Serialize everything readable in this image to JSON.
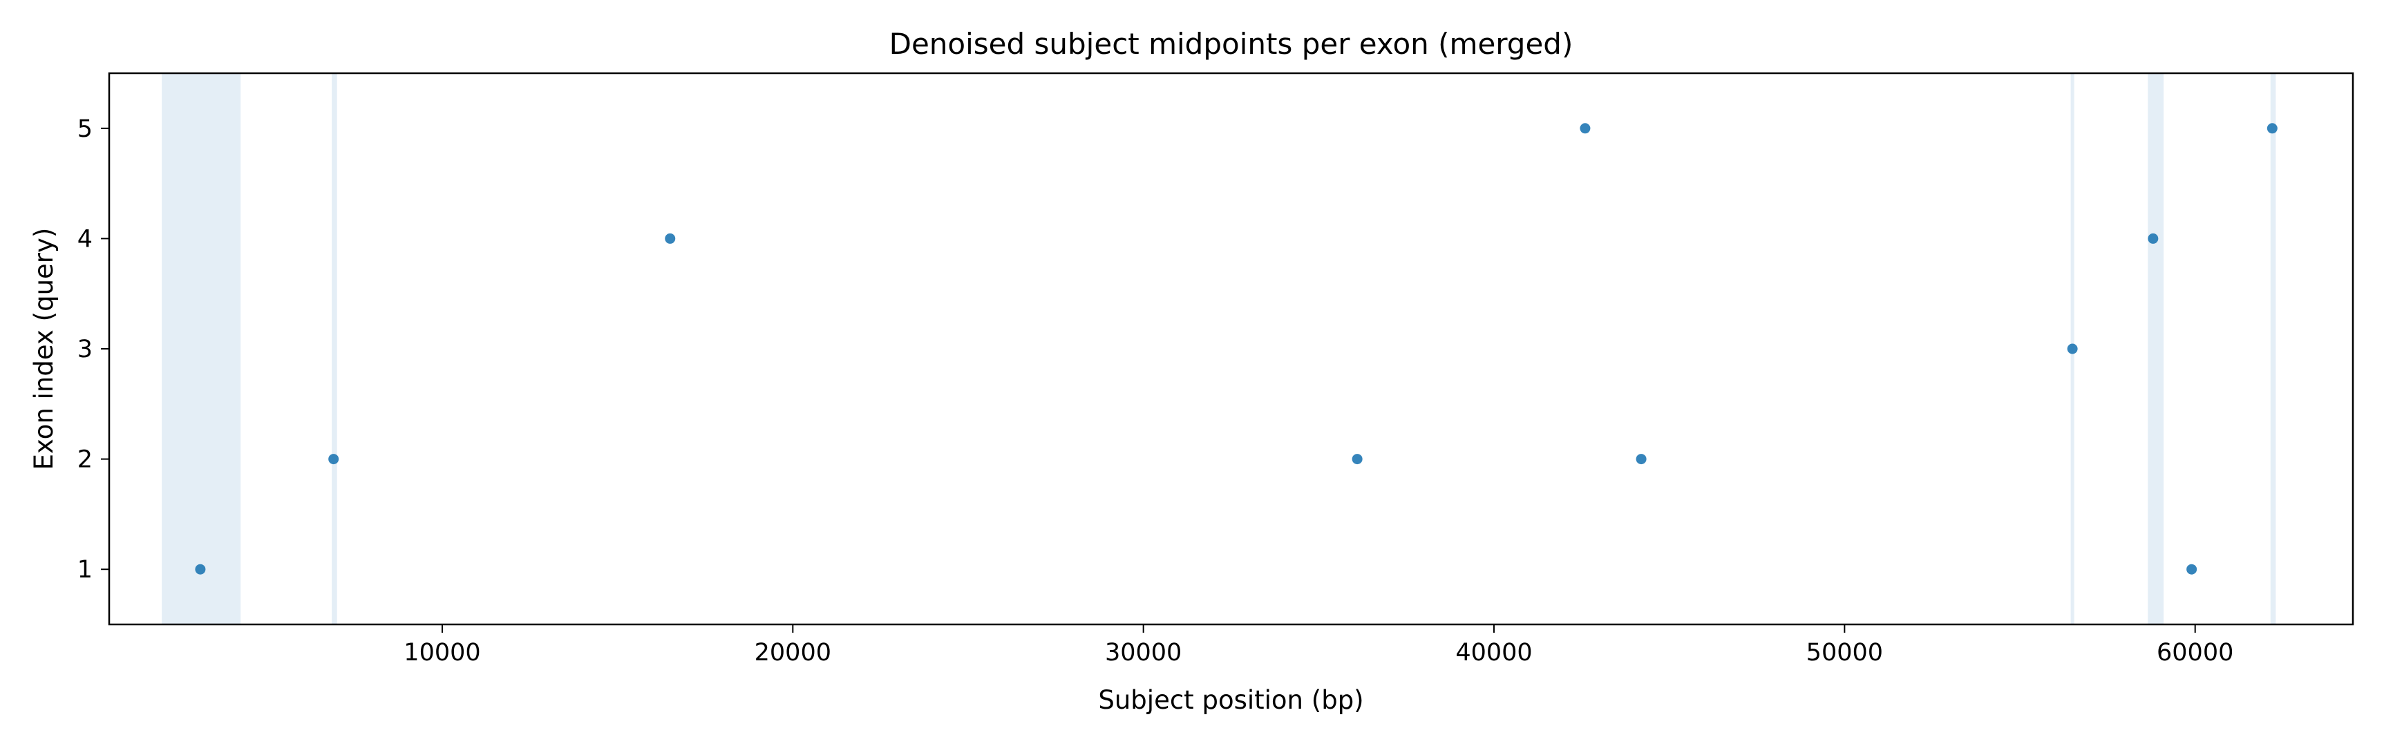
{
  "chart_data": {
    "type": "scatter",
    "title": "Denoised subject midpoints per exon (merged)",
    "xlabel": "Subject position (bp)",
    "ylabel": "Exon index (query)",
    "xlim": [
      500,
      64500
    ],
    "ylim": [
      0.5,
      5.5
    ],
    "xticks": [
      10000,
      20000,
      30000,
      40000,
      50000,
      60000
    ],
    "yticks": [
      1,
      2,
      3,
      4,
      5
    ],
    "grid": false,
    "colors": {
      "points": "#1f77b4",
      "bands": "#1f77b4"
    },
    "series": [
      {
        "points": [
          {
            "x": 3100,
            "y": 1
          },
          {
            "x": 6900,
            "y": 2
          },
          {
            "x": 16500,
            "y": 4
          },
          {
            "x": 36100,
            "y": 2
          },
          {
            "x": 42600,
            "y": 5
          },
          {
            "x": 44200,
            "y": 2
          },
          {
            "x": 56500,
            "y": 3
          },
          {
            "x": 58800,
            "y": 4
          },
          {
            "x": 59900,
            "y": 1
          },
          {
            "x": 62200,
            "y": 5
          }
        ]
      }
    ],
    "highlight_bands": [
      {
        "x_start": 2000,
        "x_end": 4250
      },
      {
        "x_start": 6850,
        "x_end": 7000
      },
      {
        "x_start": 56450,
        "x_end": 56550
      },
      {
        "x_start": 58650,
        "x_end": 59100
      },
      {
        "x_start": 62150,
        "x_end": 62300
      }
    ]
  }
}
